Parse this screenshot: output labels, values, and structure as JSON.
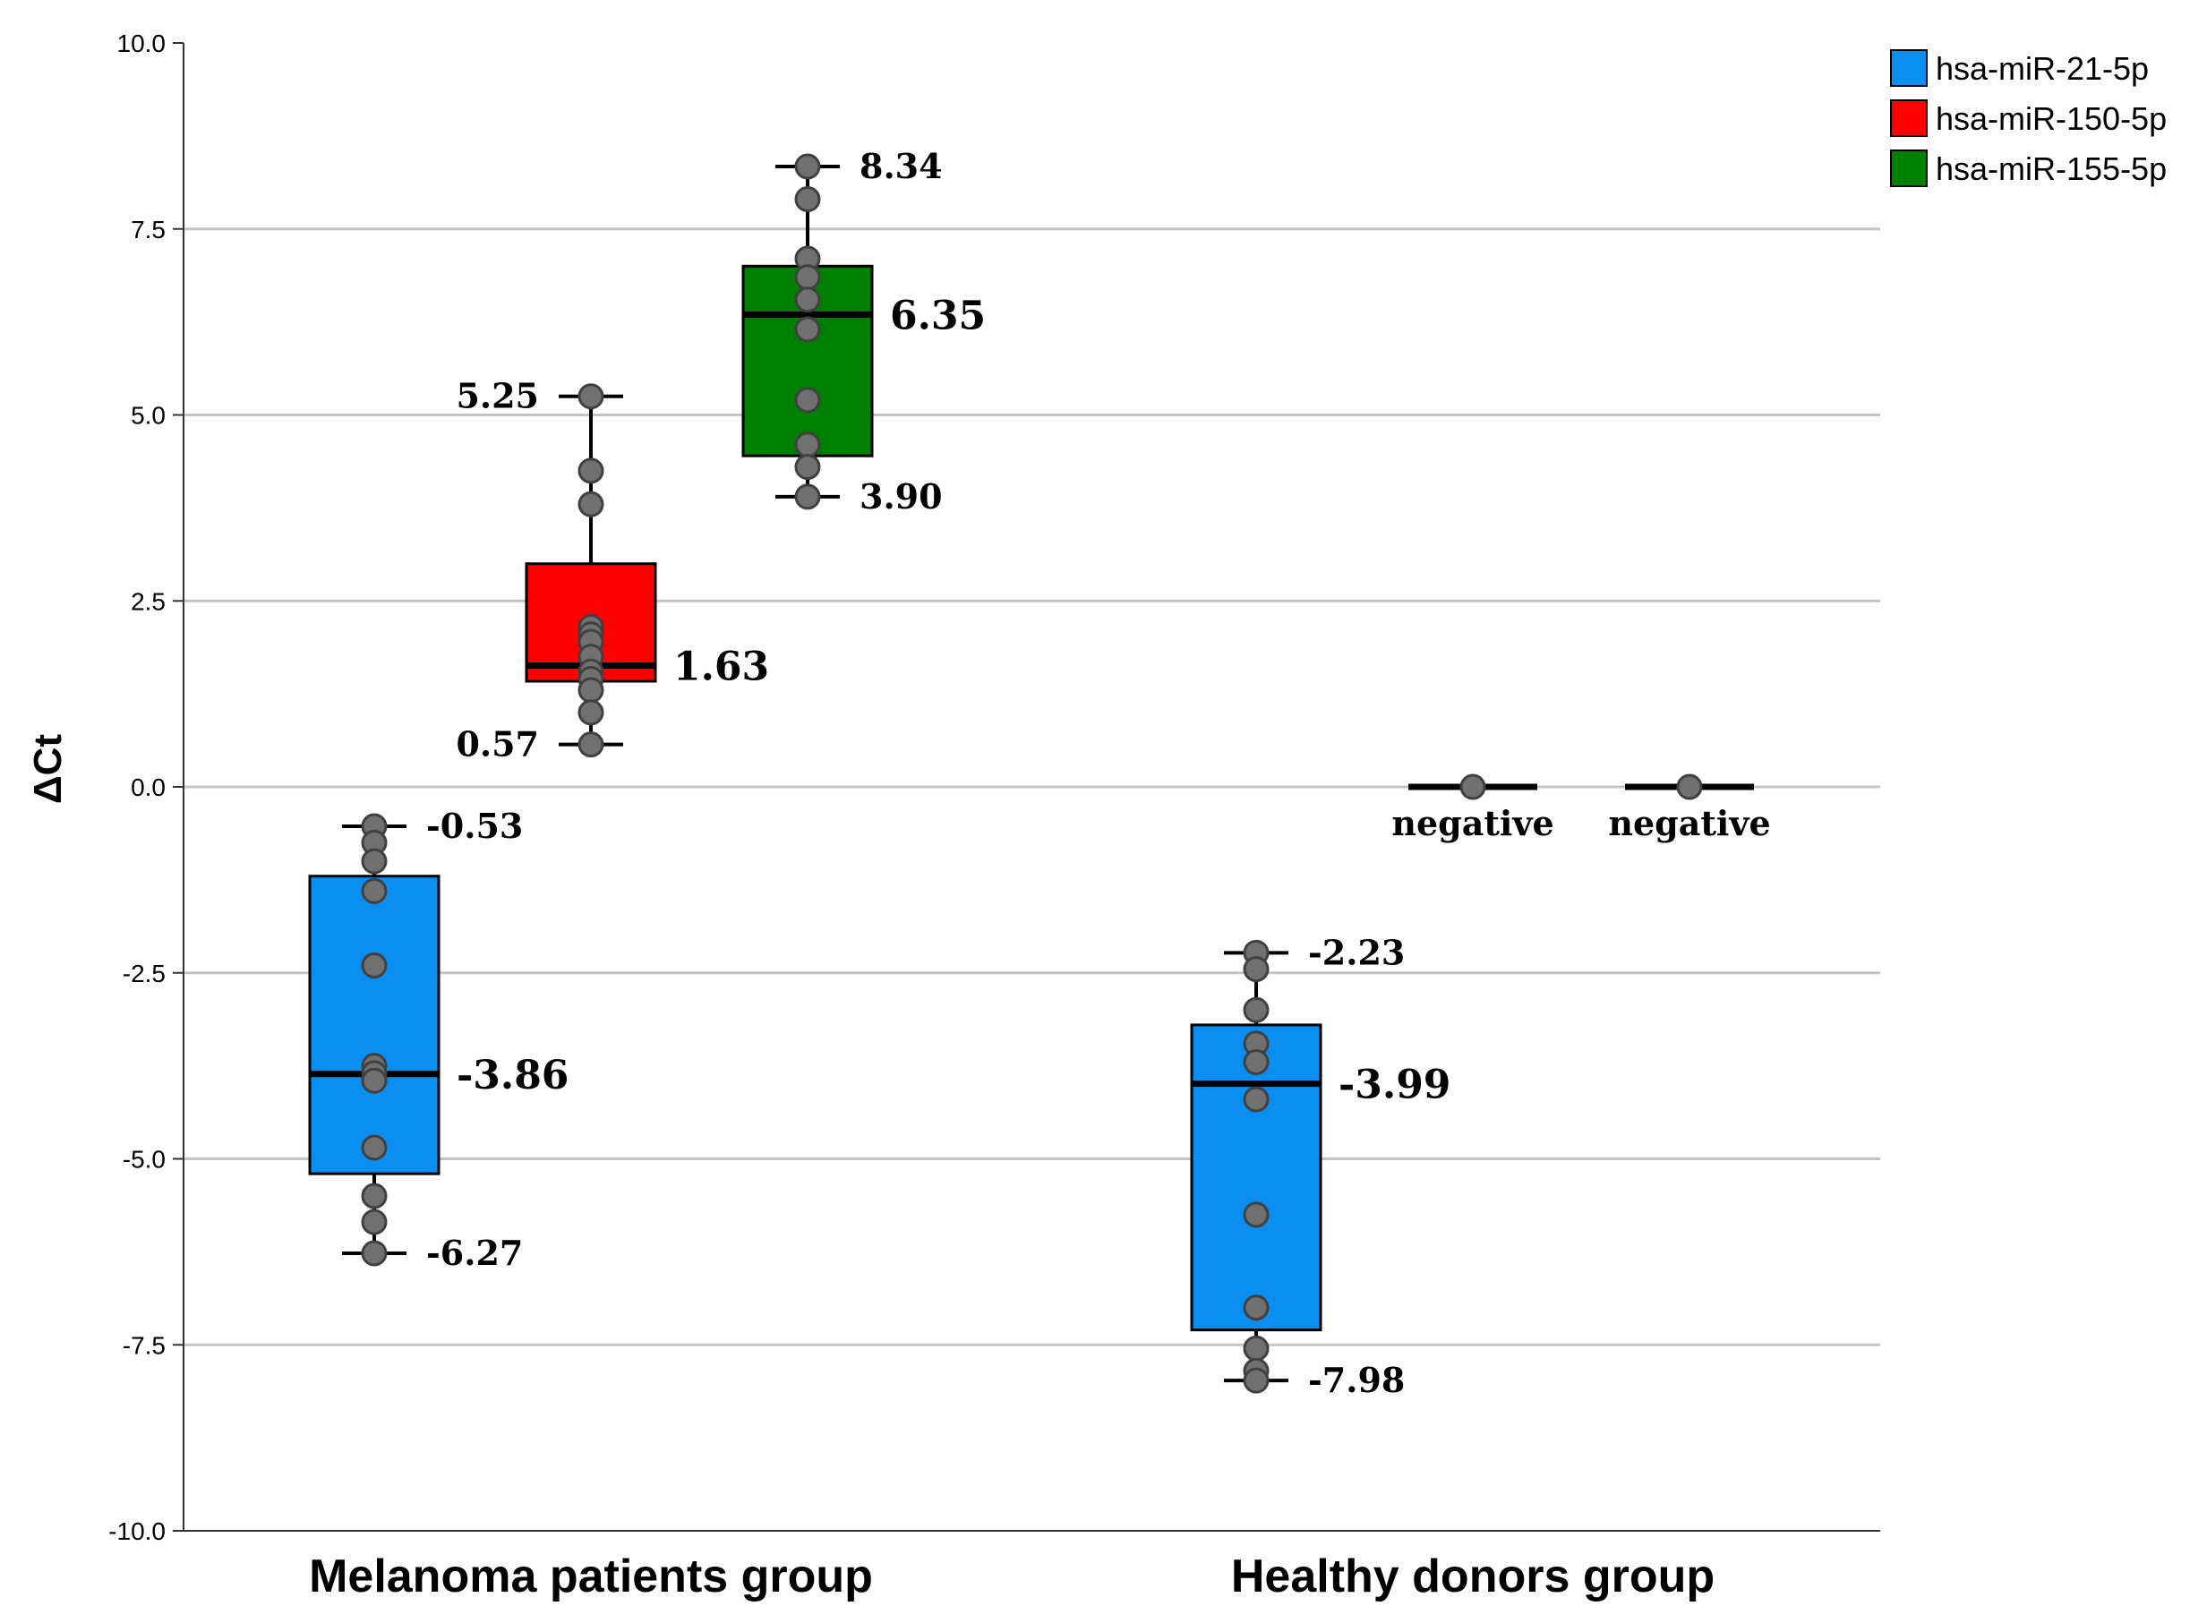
{
  "chart_data": {
    "type": "box",
    "title": "",
    "xlabel": "",
    "ylabel": "ΔCt",
    "ylim": [
      -10,
      10
    ],
    "yticks": [
      10,
      7.5,
      5,
      2.5,
      0,
      -2.5,
      -5,
      -7.5,
      -10
    ],
    "ytick_labels": [
      "10.0",
      "7.5",
      "5.0",
      "2.5",
      "0.0",
      "-2.5",
      "-5.0",
      "-7.5",
      "-10.0"
    ],
    "grid": true,
    "legend_position": "top-right",
    "categories": [
      "Melanoma patients group",
      "Healthy donors group"
    ],
    "series": [
      {
        "name": "hsa-miR-21-5p",
        "color": "#0a8ff0"
      },
      {
        "name": "hsa-miR-150-5p",
        "color": "#ff0000"
      },
      {
        "name": "hsa-miR-155-5p",
        "color": "#008000"
      }
    ],
    "boxes": [
      {
        "category": "Melanoma patients group",
        "series": "hsa-miR-21-5p",
        "min": -6.27,
        "q1": -5.2,
        "median": -3.86,
        "q3": -1.2,
        "max": -0.53,
        "points": [
          -0.53,
          -0.75,
          -1.0,
          -1.4,
          -2.4,
          -3.75,
          -3.85,
          -3.95,
          -4.85,
          -5.5,
          -5.85,
          -6.27
        ],
        "labels": {
          "max": "-0.53",
          "median": "-3.86",
          "min": "-6.27"
        }
      },
      {
        "category": "Melanoma patients group",
        "series": "hsa-miR-150-5p",
        "min": 0.57,
        "q1": 1.42,
        "median": 1.63,
        "q3": 3.0,
        "max": 5.25,
        "points": [
          5.25,
          4.25,
          3.8,
          2.15,
          2.05,
          1.95,
          1.75,
          1.55,
          1.45,
          1.3,
          1.0,
          0.57
        ],
        "labels": {
          "max": "5.25",
          "median": "1.63",
          "min": "0.57"
        }
      },
      {
        "category": "Melanoma patients group",
        "series": "hsa-miR-155-5p",
        "min": 3.9,
        "q1": 4.45,
        "median": 6.35,
        "q3": 7.0,
        "max": 8.34,
        "points": [
          8.34,
          7.9,
          7.1,
          6.85,
          6.55,
          6.15,
          5.2,
          4.6,
          4.3,
          3.9
        ],
        "labels": {
          "max": "8.34",
          "median": "6.35",
          "min": "3.90"
        }
      },
      {
        "category": "Healthy donors group",
        "series": "hsa-miR-21-5p",
        "min": -7.98,
        "q1": -7.3,
        "median": -3.99,
        "q3": -3.2,
        "max": -2.23,
        "points": [
          -2.23,
          -2.45,
          -3.0,
          -3.45,
          -3.7,
          -4.2,
          -5.75,
          -7.0,
          -7.55,
          -7.85,
          -7.98
        ],
        "labels": {
          "max": "-2.23",
          "median": "-3.99",
          "min": "-7.98"
        }
      },
      {
        "category": "Healthy donors group",
        "series": "hsa-miR-150-5p",
        "min": 0,
        "q1": 0,
        "median": 0,
        "q3": 0,
        "max": 0,
        "points": [
          0
        ],
        "labels": {
          "note": "negative"
        }
      },
      {
        "category": "Healthy donors group",
        "series": "hsa-miR-155-5p",
        "min": 0,
        "q1": 0,
        "median": 0,
        "q3": 0,
        "max": 0,
        "points": [
          0
        ],
        "labels": {
          "note": "negative"
        }
      }
    ]
  }
}
